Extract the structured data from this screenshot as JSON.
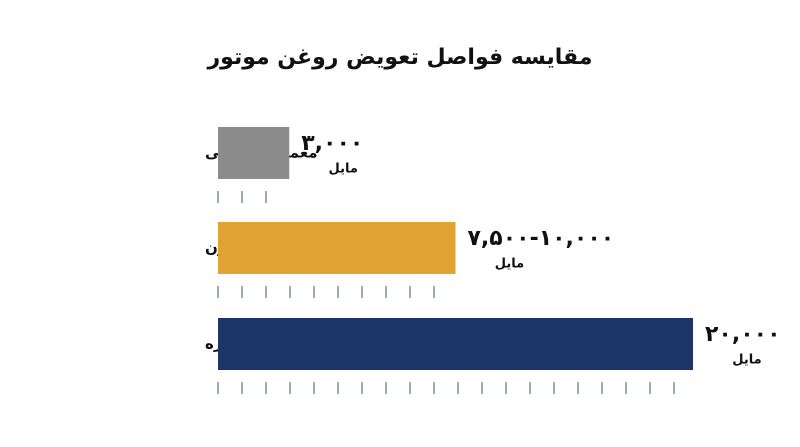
{
  "chart_data": {
    "type": "bar",
    "orientation": "horizontal",
    "title": "مقایسه فواصل تعویض روغن موتور",
    "categories": [
      "معمولی قدیمی",
      "میانگین سنتتیک مدرن",
      "عملکرد طولانی مدت ویژه"
    ],
    "values": [
      3000,
      10000,
      20000
    ],
    "value_labels": [
      "۳,۰۰۰",
      "۷,۵۰۰-۱۰,۰۰۰",
      "۲۰,۰۰۰"
    ],
    "unit": "مایل",
    "colors": [
      "#8c8c8c",
      "#e0a232",
      "#1b3566"
    ],
    "xlim": [
      0,
      20000
    ]
  }
}
